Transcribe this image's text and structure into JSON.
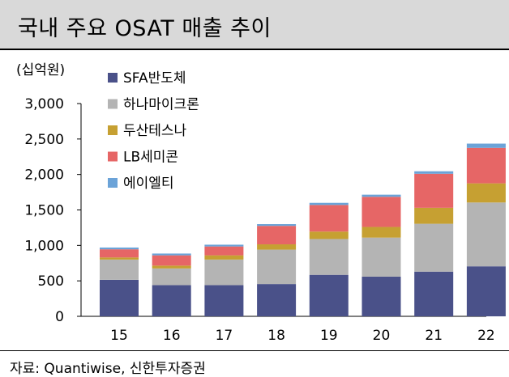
{
  "title": "국내 주요 OSAT 매출 추이",
  "unit_label": "(십억원)",
  "source": "자료: Quantiwise, 신한투자증권",
  "chart_data": {
    "type": "bar",
    "stacked": true,
    "categories": [
      "15",
      "16",
      "17",
      "18",
      "19",
      "20",
      "21",
      "22"
    ],
    "ylim": [
      0,
      3000
    ],
    "yticks": [
      0,
      500,
      1000,
      1500,
      2000,
      2500,
      3000
    ],
    "ytick_labels": [
      "0",
      "500",
      "1,000",
      "1,500",
      "2,000",
      "2,500",
      "3,000"
    ],
    "legend_position": "top-left",
    "grid": false,
    "series": [
      {
        "name": "SFA반도체",
        "color": "#4a5189",
        "values": [
          515,
          440,
          440,
          455,
          585,
          560,
          630,
          705
        ]
      },
      {
        "name": "하나마이크론",
        "color": "#b4b4b4",
        "values": [
          285,
          235,
          360,
          485,
          505,
          550,
          675,
          900
        ]
      },
      {
        "name": "두산테스나",
        "color": "#c6a032",
        "values": [
          30,
          40,
          60,
          75,
          105,
          150,
          225,
          270
        ]
      },
      {
        "name": "LB세미콘",
        "color": "#e66666",
        "values": [
          115,
          145,
          125,
          260,
          375,
          425,
          480,
          500
        ]
      },
      {
        "name": "에이엘티",
        "color": "#6ba3d8",
        "values": [
          25,
          25,
          25,
          25,
          30,
          30,
          35,
          60
        ]
      }
    ]
  }
}
